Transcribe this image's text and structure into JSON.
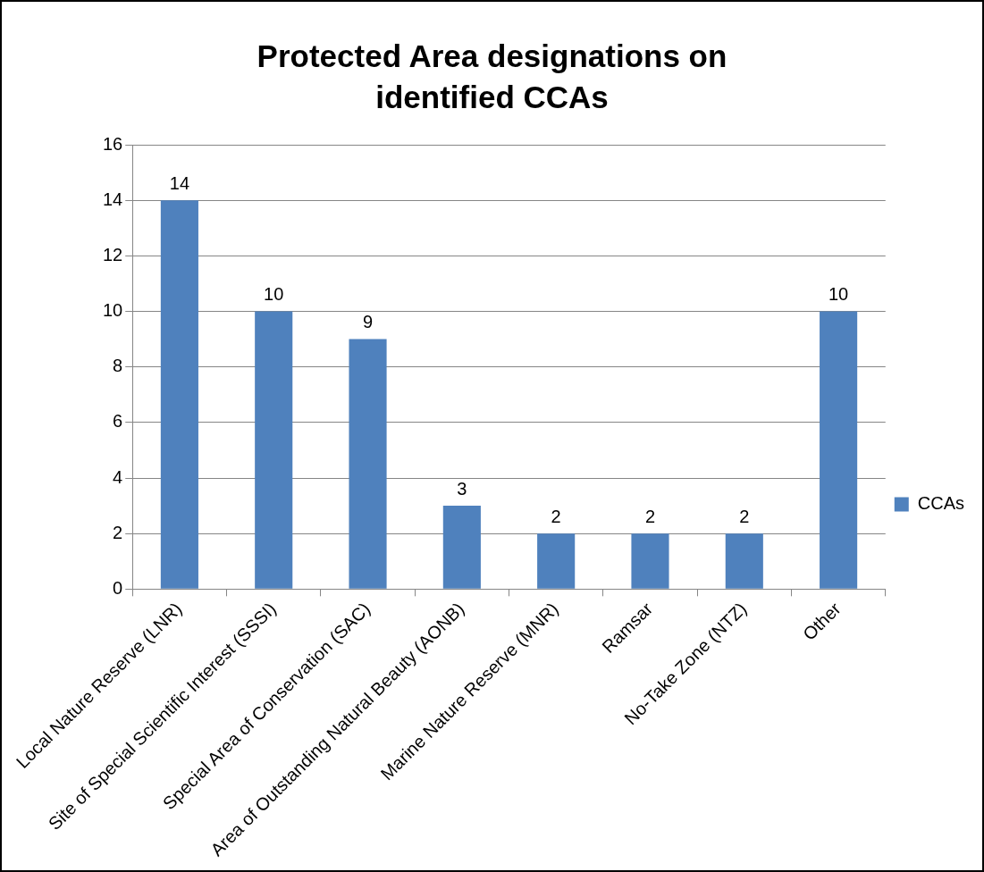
{
  "chart_data": {
    "type": "bar",
    "title": "Protected Area designations on identified CCAs",
    "categories": [
      "Local Nature Reserve (LNR)",
      "Site of Special Scientific Interest (SSSI)",
      "Special Area of Conservation (SAC)",
      "Area of Outstanding Natural Beauty (AONB)",
      "Marine Nature Reserve (MNR)",
      "Ramsar",
      "No-Take Zone (NTZ)",
      "Other"
    ],
    "series": [
      {
        "name": "CCAs",
        "color": "#4f81bd",
        "values": [
          14,
          10,
          9,
          3,
          2,
          2,
          2,
          10
        ]
      }
    ],
    "ylim": [
      0,
      16
    ],
    "yticks": [
      0,
      2,
      4,
      6,
      8,
      10,
      12,
      14,
      16
    ],
    "grid": "y",
    "legend": "right",
    "data_labels": true
  }
}
